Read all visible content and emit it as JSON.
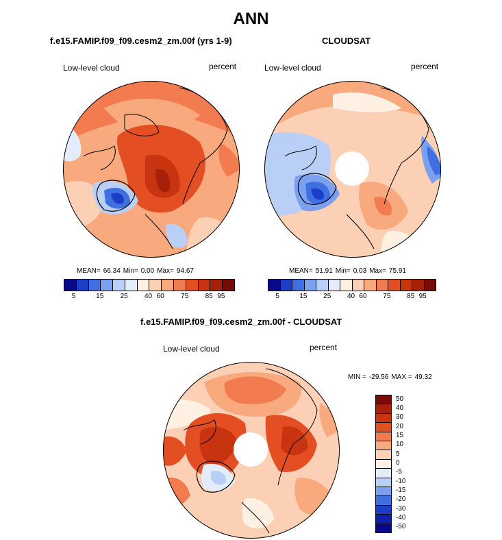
{
  "chart_data": [
    {
      "type": "heatmap",
      "projection": "north-polar-stereographic",
      "title": "f.e15.FAMIP.f09_f09.cesm2_zm.00f (yrs 1-9)",
      "left_label": "Low-level cloud",
      "right_label": "percent",
      "stats": {
        "mean_label": "MEAN=",
        "mean": "66.34",
        "min_label": "Min=",
        "min": "0.00",
        "max_label": "Max=",
        "max": "94.67"
      },
      "colorbar": {
        "orientation": "horizontal",
        "tick_labels": [
          "5",
          "15",
          "25",
          "40",
          "60",
          "75",
          "85",
          "95"
        ]
      }
    },
    {
      "type": "heatmap",
      "projection": "north-polar-stereographic",
      "title": "CLOUDSAT",
      "left_label": "Low-level cloud",
      "right_label": "percent",
      "stats": {
        "mean_label": "MEAN=",
        "mean": "51.91",
        "min_label": "Min=",
        "min": "0.03",
        "max_label": "Max=",
        "max": "75.91"
      },
      "colorbar": {
        "orientation": "horizontal",
        "tick_labels": [
          "5",
          "15",
          "25",
          "40",
          "60",
          "75",
          "85",
          "95"
        ]
      }
    },
    {
      "type": "heatmap",
      "projection": "north-polar-stereographic",
      "title": "f.e15.FAMIP.f09_f09.cesm2_zm.00f - CLOUDSAT",
      "left_label": "Low-level cloud",
      "right_label": "percent",
      "minmax": {
        "min_label": "MIN =",
        "min": "-29.56",
        "max_label": "MAX =",
        "max": "49.32"
      },
      "colorbar": {
        "orientation": "vertical",
        "tick_labels": [
          "50",
          "40",
          "30",
          "20",
          "15",
          "10",
          "5",
          "0",
          "-5",
          "-10",
          "-15",
          "-20",
          "-30",
          "-40",
          "-50"
        ]
      }
    }
  ],
  "figure_title": "ANN",
  "colors": {
    "abs_scale": [
      "#08088a",
      "#1c3ec6",
      "#3f6fe0",
      "#7aa0ef",
      "#b9cff6",
      "#e3ecfb",
      "#fff0e4",
      "#fcd0b4",
      "#f8a97e",
      "#f27b50",
      "#e34e22",
      "#c8340f",
      "#a6200a",
      "#7a0a06"
    ],
    "diff_scale": [
      "#7a0a06",
      "#a6200a",
      "#c8340f",
      "#e34e22",
      "#f27b50",
      "#f8a97e",
      "#fcd0b4",
      "#fff0e4",
      "#e3ecfb",
      "#b9cff6",
      "#7aa0ef",
      "#3f6fe0",
      "#1c3ec6",
      "#1020a8",
      "#08088a"
    ]
  }
}
